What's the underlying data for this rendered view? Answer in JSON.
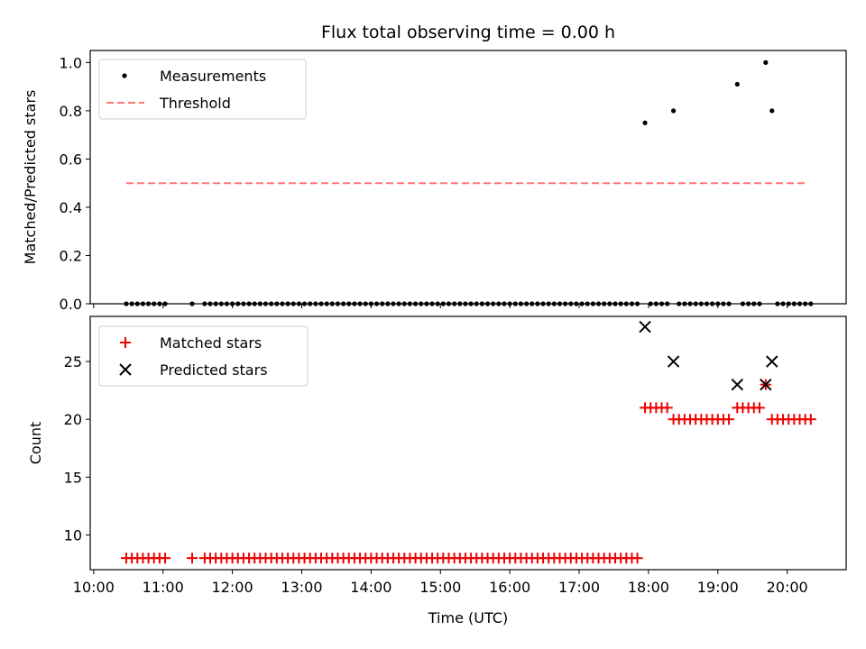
{
  "title": "Flux total observing time = 0.00 h",
  "colors": {
    "threshold": "#ff7777",
    "matched": "#ee0000",
    "predicted": "#000000",
    "measurement": "#000000"
  },
  "chart_data": [
    {
      "type": "scatter",
      "panel": "top",
      "xlabel": "",
      "ylabel": "Matched/Predicted stars",
      "xlim": [
        9.95,
        20.85
      ],
      "ylim": [
        0,
        1.05
      ],
      "yticks": [
        0.0,
        0.2,
        0.4,
        0.6,
        0.8,
        1.0
      ],
      "ytick_labels": [
        "0.0",
        "0.2",
        "0.4",
        "0.6",
        "0.8",
        "1.0"
      ],
      "legend_position": "top-left",
      "threshold": {
        "name": "Threshold",
        "y": 0.5,
        "x": [
          10.47,
          20.3
        ]
      },
      "series": [
        {
          "name": "Measurements",
          "x": [
            10.47,
            10.55,
            10.63,
            10.71,
            10.79,
            10.87,
            10.95,
            11.03,
            11.42,
            11.6,
            11.68,
            11.76,
            11.84,
            11.92,
            12.0,
            12.08,
            12.16,
            12.24,
            12.32,
            12.4,
            12.48,
            12.56,
            12.64,
            12.72,
            12.8,
            12.88,
            12.96,
            13.04,
            13.12,
            13.2,
            13.28,
            13.36,
            13.44,
            13.52,
            13.6,
            13.68,
            13.76,
            13.84,
            13.92,
            14.0,
            14.08,
            14.16,
            14.24,
            14.32,
            14.4,
            14.48,
            14.56,
            14.64,
            14.72,
            14.8,
            14.88,
            14.96,
            15.04,
            15.12,
            15.2,
            15.28,
            15.36,
            15.44,
            15.52,
            15.6,
            15.68,
            15.76,
            15.84,
            15.92,
            16.0,
            16.08,
            16.16,
            16.24,
            16.32,
            16.4,
            16.48,
            16.56,
            16.64,
            16.72,
            16.8,
            16.88,
            16.96,
            17.04,
            17.12,
            17.2,
            17.28,
            17.36,
            17.44,
            17.52,
            17.6,
            17.68,
            17.76,
            17.84,
            17.95,
            18.03,
            18.11,
            18.19,
            18.27,
            18.36,
            18.44,
            18.52,
            18.6,
            18.68,
            18.76,
            18.84,
            18.92,
            19.0,
            19.08,
            19.16,
            19.28,
            19.36,
            19.44,
            19.52,
            19.6,
            19.69,
            19.78,
            19.86,
            19.94,
            20.02,
            20.1,
            20.18,
            20.26,
            20.34
          ],
          "y": [
            0,
            0,
            0,
            0,
            0,
            0,
            0,
            0,
            0,
            0,
            0,
            0,
            0,
            0,
            0,
            0,
            0,
            0,
            0,
            0,
            0,
            0,
            0,
            0,
            0,
            0,
            0,
            0,
            0,
            0,
            0,
            0,
            0,
            0,
            0,
            0,
            0,
            0,
            0,
            0,
            0,
            0,
            0,
            0,
            0,
            0,
            0,
            0,
            0,
            0,
            0,
            0,
            0,
            0,
            0,
            0,
            0,
            0,
            0,
            0,
            0,
            0,
            0,
            0,
            0,
            0,
            0,
            0,
            0,
            0,
            0,
            0,
            0,
            0,
            0,
            0,
            0,
            0,
            0,
            0,
            0,
            0,
            0,
            0,
            0,
            0,
            0,
            0,
            0.75,
            0,
            0,
            0,
            0,
            0.8,
            0,
            0,
            0,
            0,
            0,
            0,
            0,
            0,
            0,
            0,
            0.91,
            0,
            0,
            0,
            0,
            1.0,
            0.8,
            0,
            0,
            0,
            0,
            0,
            0,
            0
          ]
        }
      ]
    },
    {
      "type": "scatter",
      "panel": "bottom",
      "xlabel": "Time (UTC)",
      "ylabel": "Count",
      "xlim": [
        9.95,
        20.85
      ],
      "ylim": [
        7,
        28.9
      ],
      "yticks": [
        10,
        15,
        20,
        25
      ],
      "ytick_labels": [
        "10",
        "15",
        "20",
        "25"
      ],
      "xticks": [
        10,
        11,
        12,
        13,
        14,
        15,
        16,
        17,
        18,
        19,
        20
      ],
      "xtick_labels": [
        "10:00",
        "11:00",
        "12:00",
        "13:00",
        "14:00",
        "15:00",
        "16:00",
        "17:00",
        "18:00",
        "19:00",
        "20:00"
      ],
      "legend_position": "top-left",
      "series": [
        {
          "name": "Matched stars",
          "x": [
            10.47,
            10.55,
            10.63,
            10.71,
            10.79,
            10.87,
            10.95,
            11.03,
            11.42,
            11.6,
            11.68,
            11.76,
            11.84,
            11.92,
            12.0,
            12.08,
            12.16,
            12.24,
            12.32,
            12.4,
            12.48,
            12.56,
            12.64,
            12.72,
            12.8,
            12.88,
            12.96,
            13.04,
            13.12,
            13.2,
            13.28,
            13.36,
            13.44,
            13.52,
            13.6,
            13.68,
            13.76,
            13.84,
            13.92,
            14.0,
            14.08,
            14.16,
            14.24,
            14.32,
            14.4,
            14.48,
            14.56,
            14.64,
            14.72,
            14.8,
            14.88,
            14.96,
            15.04,
            15.12,
            15.2,
            15.28,
            15.36,
            15.44,
            15.52,
            15.6,
            15.68,
            15.76,
            15.84,
            15.92,
            16.0,
            16.08,
            16.16,
            16.24,
            16.32,
            16.4,
            16.48,
            16.56,
            16.64,
            16.72,
            16.8,
            16.88,
            16.96,
            17.04,
            17.12,
            17.2,
            17.28,
            17.36,
            17.44,
            17.52,
            17.6,
            17.68,
            17.76,
            17.84,
            17.95,
            18.03,
            18.11,
            18.19,
            18.27,
            18.36,
            18.44,
            18.52,
            18.6,
            18.68,
            18.76,
            18.84,
            18.92,
            19.0,
            19.08,
            19.16,
            19.28,
            19.36,
            19.44,
            19.52,
            19.6,
            19.69,
            19.78,
            19.86,
            19.94,
            20.02,
            20.1,
            20.18,
            20.26,
            20.34
          ],
          "y": [
            8,
            8,
            8,
            8,
            8,
            8,
            8,
            8,
            8,
            8,
            8,
            8,
            8,
            8,
            8,
            8,
            8,
            8,
            8,
            8,
            8,
            8,
            8,
            8,
            8,
            8,
            8,
            8,
            8,
            8,
            8,
            8,
            8,
            8,
            8,
            8,
            8,
            8,
            8,
            8,
            8,
            8,
            8,
            8,
            8,
            8,
            8,
            8,
            8,
            8,
            8,
            8,
            8,
            8,
            8,
            8,
            8,
            8,
            8,
            8,
            8,
            8,
            8,
            8,
            8,
            8,
            8,
            8,
            8,
            8,
            8,
            8,
            8,
            8,
            8,
            8,
            8,
            8,
            8,
            8,
            8,
            8,
            8,
            8,
            8,
            8,
            8,
            8,
            21,
            21,
            21,
            21,
            21,
            20,
            20,
            20,
            20,
            20,
            20,
            20,
            20,
            20,
            20,
            20,
            21,
            21,
            21,
            21,
            21,
            23,
            20,
            20,
            20,
            20,
            20,
            20,
            20,
            20
          ]
        },
        {
          "name": "Predicted stars",
          "x": [
            17.95,
            18.36,
            19.28,
            19.69,
            19.78
          ],
          "y": [
            28,
            25,
            23,
            23,
            25
          ]
        }
      ]
    }
  ]
}
